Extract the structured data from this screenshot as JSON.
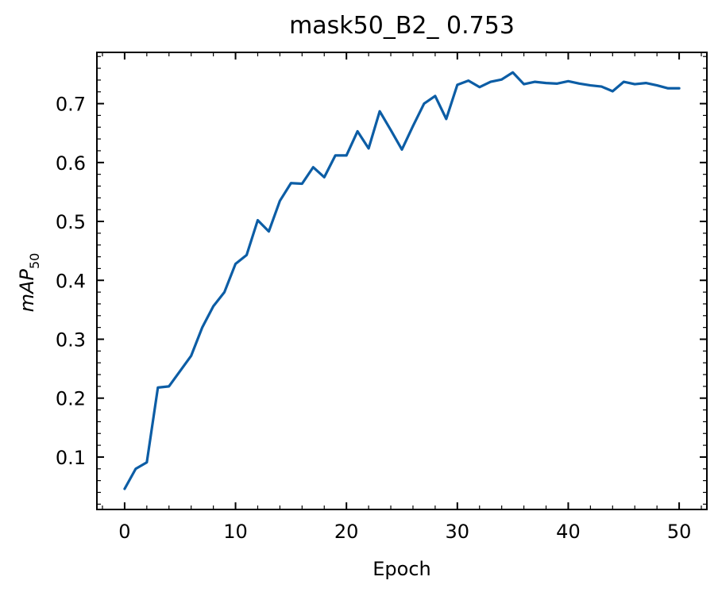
{
  "chart_data": {
    "type": "line",
    "title": "mask50_B2_ 0.753",
    "xlabel": "Epoch",
    "ylabel": {
      "base": "mAP",
      "subscript": "50"
    },
    "xlim": [
      -2.5,
      52.5
    ],
    "ylim": [
      0.011,
      0.787
    ],
    "x_ticks": [
      0,
      10,
      20,
      30,
      40,
      50
    ],
    "y_ticks": [
      0.1,
      0.2,
      0.3,
      0.4,
      0.5,
      0.6,
      0.7
    ],
    "grid": false,
    "series_color": "#0C5DA5",
    "series": [
      {
        "x": [
          0,
          1,
          2,
          3,
          4,
          5,
          6,
          7,
          8,
          9,
          10,
          11,
          12,
          13,
          14,
          15,
          16,
          17,
          18,
          19,
          20,
          21,
          22,
          23,
          24,
          25,
          26,
          27,
          28,
          29,
          30,
          31,
          32,
          33,
          34,
          35,
          36,
          37,
          38,
          39,
          40,
          41,
          42,
          43,
          44,
          45,
          46,
          47,
          48,
          49,
          50
        ],
        "values": [
          0.046,
          0.08,
          0.091,
          0.218,
          0.22,
          0.246,
          0.272,
          0.32,
          0.356,
          0.38,
          0.428,
          0.443,
          0.502,
          0.483,
          0.535,
          0.565,
          0.564,
          0.592,
          0.575,
          0.612,
          0.612,
          0.653,
          0.624,
          0.687,
          0.655,
          0.622,
          0.662,
          0.7,
          0.713,
          0.674,
          0.732,
          0.739,
          0.728,
          0.737,
          0.741,
          0.753,
          0.733,
          0.737,
          0.735,
          0.734,
          0.738,
          0.734,
          0.731,
          0.729,
          0.721,
          0.737,
          0.733,
          0.735,
          0.731,
          0.726,
          0.726
        ]
      }
    ]
  }
}
